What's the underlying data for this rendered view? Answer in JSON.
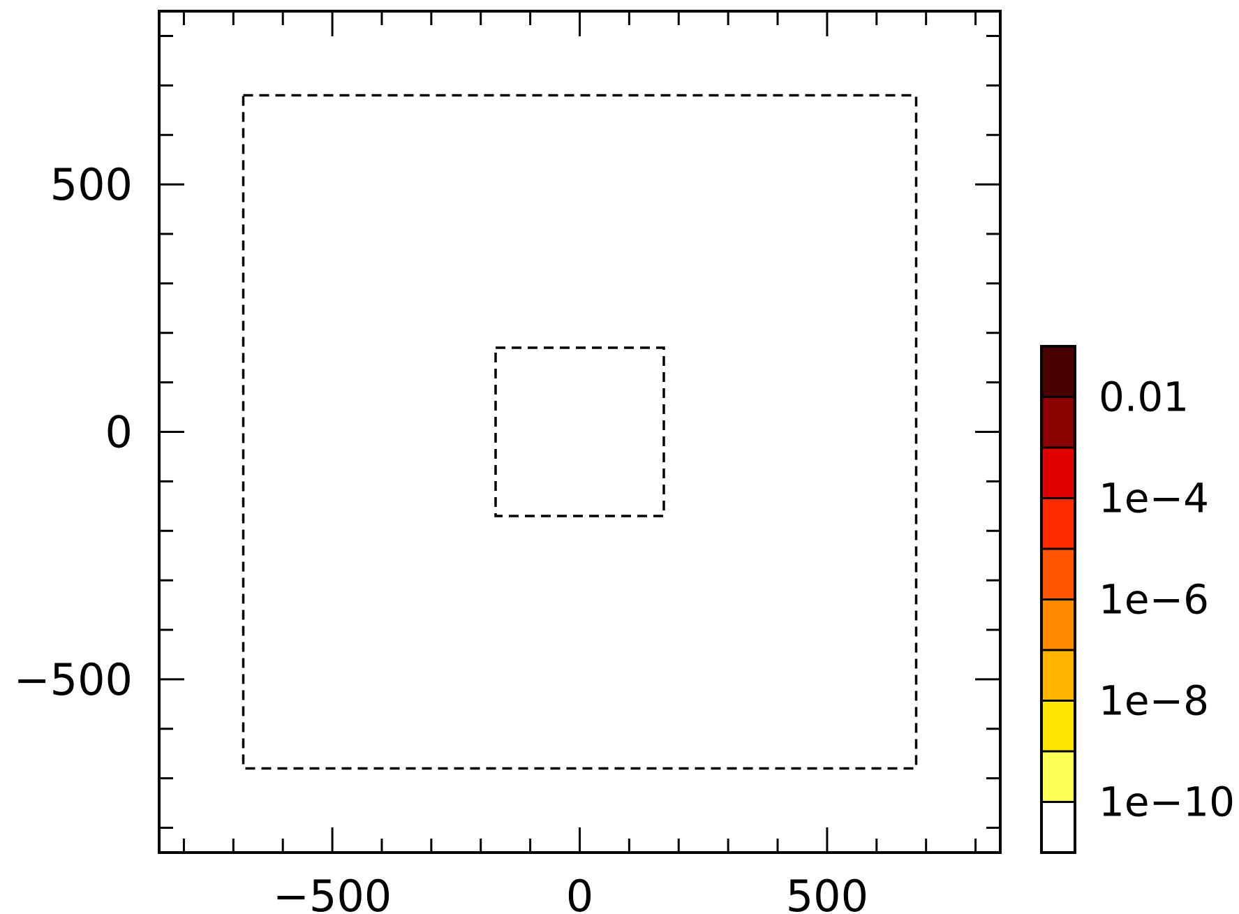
{
  "chart_data": {
    "type": "heatmap",
    "title": "",
    "xlabel": "",
    "ylabel": "",
    "xlim": [
      -850,
      850
    ],
    "ylim": [
      -850,
      850
    ],
    "x_ticks": [
      -500,
      0,
      500
    ],
    "y_ticks": [
      -500,
      0,
      500
    ],
    "x_tick_labels": [
      "−500",
      "0",
      "500"
    ],
    "y_tick_labels": [
      "−500",
      "0",
      "500"
    ],
    "grid": false,
    "regions": [
      {
        "x": [
          -680,
          680
        ],
        "y": [
          -680,
          680
        ],
        "style": "dashed"
      },
      {
        "x": [
          -170,
          170
        ],
        "y": [
          -170,
          170
        ],
        "style": "dashed"
      }
    ],
    "colorbar": {
      "scale": "log",
      "bins": [
        {
          "color": "#ffffff"
        },
        {
          "color": "#fdfd55"
        },
        {
          "color": "#ffe500"
        },
        {
          "color": "#ffb400"
        },
        {
          "color": "#ff8a00"
        },
        {
          "color": "#ff5500"
        },
        {
          "color": "#ff2a00"
        },
        {
          "color": "#e00000"
        },
        {
          "color": "#8b0000"
        },
        {
          "color": "#4a0000"
        }
      ],
      "labels": [
        {
          "text": "1e−10",
          "boundary": 1
        },
        {
          "text": "1e−8",
          "boundary": 3
        },
        {
          "text": "1e−6",
          "boundary": 5
        },
        {
          "text": "1e−4",
          "boundary": 7
        },
        {
          "text": "0.01",
          "boundary": 9
        }
      ]
    }
  }
}
